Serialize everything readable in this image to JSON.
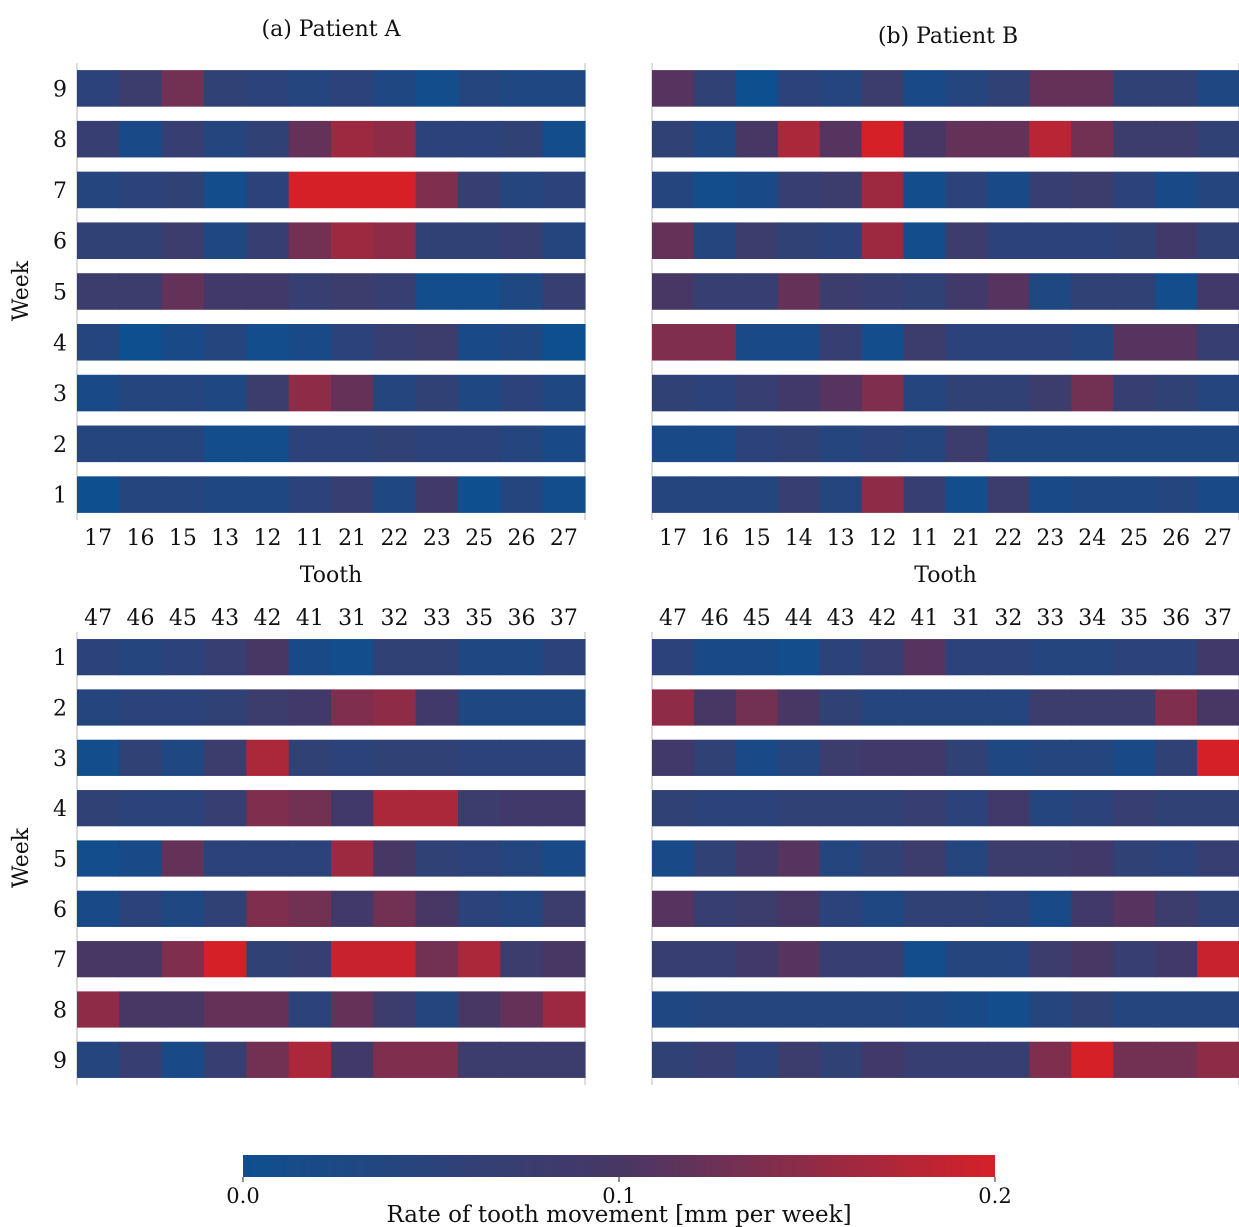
{
  "colors": {
    "scale_low": "#0e4f8f",
    "scale_mid": "#473765",
    "scale_high": "#d62028"
  },
  "colorbar": {
    "label": "Rate of tooth movement [mm per week]",
    "range": [
      0.0,
      0.2
    ],
    "ticks": [
      "0.0",
      "0.1",
      "0.2"
    ]
  },
  "chart_data": [
    {
      "type": "heatmap",
      "title": "(a) Patient A",
      "jaw": "upper",
      "xlabel": "Tooth",
      "ylabel": "Week",
      "x": [
        "17",
        "16",
        "15",
        "13",
        "12",
        "11",
        "21",
        "22",
        "23",
        "25",
        "26",
        "27"
      ],
      "y": [
        "9",
        "8",
        "7",
        "6",
        "5",
        "4",
        "3",
        "2",
        "1"
      ],
      "values": [
        [
          0.05,
          0.08,
          0.13,
          0.06,
          0.05,
          0.04,
          0.05,
          0.03,
          0.01,
          0.04,
          0.03,
          0.03
        ],
        [
          0.07,
          0.02,
          0.07,
          0.04,
          0.06,
          0.12,
          0.16,
          0.15,
          0.05,
          0.05,
          0.06,
          0.01
        ],
        [
          0.04,
          0.05,
          0.06,
          0.01,
          0.05,
          0.2,
          0.2,
          0.2,
          0.14,
          0.07,
          0.04,
          0.05
        ],
        [
          0.06,
          0.06,
          0.08,
          0.03,
          0.07,
          0.13,
          0.16,
          0.15,
          0.06,
          0.06,
          0.07,
          0.04
        ],
        [
          0.08,
          0.08,
          0.12,
          0.09,
          0.09,
          0.07,
          0.08,
          0.07,
          0.01,
          0.01,
          0.03,
          0.07
        ],
        [
          0.04,
          0.0,
          0.02,
          0.04,
          0.01,
          0.02,
          0.05,
          0.07,
          0.08,
          0.02,
          0.03,
          0.0
        ],
        [
          0.02,
          0.04,
          0.04,
          0.03,
          0.08,
          0.15,
          0.12,
          0.04,
          0.06,
          0.03,
          0.05,
          0.03
        ],
        [
          0.04,
          0.04,
          0.04,
          0.01,
          0.01,
          0.05,
          0.05,
          0.06,
          0.05,
          0.05,
          0.04,
          0.02
        ],
        [
          0.0,
          0.04,
          0.04,
          0.03,
          0.03,
          0.05,
          0.07,
          0.03,
          0.09,
          0.0,
          0.04,
          0.01
        ]
      ]
    },
    {
      "type": "heatmap",
      "title": "(b) Patient B",
      "jaw": "upper",
      "xlabel": "Tooth",
      "ylabel": "",
      "x": [
        "17",
        "16",
        "15",
        "14",
        "13",
        "12",
        "11",
        "21",
        "22",
        "23",
        "24",
        "25",
        "26",
        "27"
      ],
      "y": [
        "9",
        "8",
        "7",
        "6",
        "5",
        "4",
        "3",
        "2",
        "1"
      ],
      "values": [
        [
          0.11,
          0.06,
          0.0,
          0.05,
          0.04,
          0.08,
          0.02,
          0.04,
          0.06,
          0.12,
          0.12,
          0.06,
          0.06,
          0.03
        ],
        [
          0.06,
          0.03,
          0.1,
          0.17,
          0.11,
          0.2,
          0.1,
          0.12,
          0.12,
          0.18,
          0.13,
          0.08,
          0.08,
          0.06
        ],
        [
          0.04,
          0.01,
          0.02,
          0.07,
          0.08,
          0.16,
          0.01,
          0.05,
          0.02,
          0.07,
          0.08,
          0.05,
          0.02,
          0.04
        ],
        [
          0.12,
          0.04,
          0.08,
          0.06,
          0.05,
          0.16,
          0.01,
          0.08,
          0.05,
          0.05,
          0.05,
          0.06,
          0.09,
          0.06
        ],
        [
          0.1,
          0.07,
          0.07,
          0.12,
          0.08,
          0.07,
          0.06,
          0.09,
          0.11,
          0.03,
          0.06,
          0.06,
          0.01,
          0.09
        ],
        [
          0.14,
          0.14,
          0.02,
          0.02,
          0.07,
          0.01,
          0.08,
          0.05,
          0.05,
          0.05,
          0.04,
          0.11,
          0.11,
          0.07
        ],
        [
          0.06,
          0.05,
          0.07,
          0.09,
          0.11,
          0.14,
          0.04,
          0.06,
          0.06,
          0.08,
          0.13,
          0.07,
          0.06,
          0.04
        ],
        [
          0.02,
          0.02,
          0.05,
          0.06,
          0.04,
          0.05,
          0.04,
          0.08,
          0.03,
          0.03,
          0.03,
          0.03,
          0.03,
          0.03
        ],
        [
          0.04,
          0.04,
          0.04,
          0.07,
          0.04,
          0.15,
          0.07,
          0.01,
          0.08,
          0.02,
          0.03,
          0.03,
          0.04,
          0.02
        ]
      ]
    },
    {
      "type": "heatmap",
      "jaw": "lower",
      "xlabel": "",
      "ylabel": "Week",
      "x": [
        "47",
        "46",
        "45",
        "43",
        "42",
        "41",
        "31",
        "32",
        "33",
        "35",
        "36",
        "37"
      ],
      "y": [
        "1",
        "2",
        "3",
        "4",
        "5",
        "6",
        "7",
        "8",
        "9"
      ],
      "values": [
        [
          0.05,
          0.04,
          0.05,
          0.07,
          0.1,
          0.02,
          0.01,
          0.06,
          0.06,
          0.03,
          0.03,
          0.05
        ],
        [
          0.04,
          0.05,
          0.05,
          0.06,
          0.08,
          0.09,
          0.14,
          0.15,
          0.09,
          0.03,
          0.03,
          0.03
        ],
        [
          0.01,
          0.06,
          0.03,
          0.08,
          0.17,
          0.06,
          0.05,
          0.06,
          0.06,
          0.05,
          0.05,
          0.05
        ],
        [
          0.06,
          0.05,
          0.05,
          0.07,
          0.14,
          0.13,
          0.09,
          0.17,
          0.17,
          0.08,
          0.09,
          0.09
        ],
        [
          0.01,
          0.02,
          0.12,
          0.05,
          0.05,
          0.05,
          0.16,
          0.1,
          0.06,
          0.05,
          0.04,
          0.02
        ],
        [
          0.02,
          0.05,
          0.03,
          0.06,
          0.14,
          0.13,
          0.09,
          0.13,
          0.1,
          0.05,
          0.04,
          0.08
        ],
        [
          0.1,
          0.1,
          0.14,
          0.2,
          0.06,
          0.07,
          0.19,
          0.19,
          0.13,
          0.17,
          0.08,
          0.1
        ],
        [
          0.15,
          0.1,
          0.1,
          0.12,
          0.12,
          0.05,
          0.12,
          0.08,
          0.04,
          0.1,
          0.12,
          0.16
        ],
        [
          0.04,
          0.07,
          0.02,
          0.07,
          0.13,
          0.17,
          0.09,
          0.14,
          0.14,
          0.08,
          0.08,
          0.08
        ]
      ]
    },
    {
      "type": "heatmap",
      "jaw": "lower",
      "xlabel": "",
      "ylabel": "",
      "x": [
        "47",
        "46",
        "45",
        "44",
        "43",
        "42",
        "41",
        "31",
        "32",
        "33",
        "34",
        "35",
        "36",
        "37"
      ],
      "y": [
        "1",
        "2",
        "3",
        "4",
        "5",
        "6",
        "7",
        "8",
        "9"
      ],
      "values": [
        [
          0.05,
          0.02,
          0.02,
          0.01,
          0.05,
          0.07,
          0.11,
          0.05,
          0.05,
          0.04,
          0.04,
          0.05,
          0.05,
          0.09
        ],
        [
          0.15,
          0.1,
          0.13,
          0.1,
          0.06,
          0.04,
          0.04,
          0.04,
          0.04,
          0.08,
          0.08,
          0.08,
          0.14,
          0.1
        ],
        [
          0.09,
          0.06,
          0.02,
          0.04,
          0.08,
          0.09,
          0.09,
          0.06,
          0.03,
          0.04,
          0.04,
          0.02,
          0.06,
          0.2
        ],
        [
          0.06,
          0.05,
          0.05,
          0.06,
          0.06,
          0.06,
          0.07,
          0.05,
          0.09,
          0.04,
          0.05,
          0.07,
          0.06,
          0.06
        ],
        [
          0.02,
          0.06,
          0.09,
          0.11,
          0.04,
          0.06,
          0.08,
          0.04,
          0.08,
          0.08,
          0.09,
          0.06,
          0.05,
          0.07
        ],
        [
          0.11,
          0.07,
          0.08,
          0.1,
          0.05,
          0.03,
          0.06,
          0.06,
          0.05,
          0.02,
          0.09,
          0.11,
          0.08,
          0.06
        ],
        [
          0.07,
          0.07,
          0.09,
          0.11,
          0.07,
          0.07,
          0.01,
          0.04,
          0.04,
          0.08,
          0.1,
          0.07,
          0.09,
          0.19
        ],
        [
          0.03,
          0.04,
          0.04,
          0.04,
          0.04,
          0.04,
          0.03,
          0.02,
          0.01,
          0.04,
          0.06,
          0.04,
          0.04,
          0.04
        ],
        [
          0.06,
          0.07,
          0.05,
          0.08,
          0.06,
          0.09,
          0.07,
          0.07,
          0.07,
          0.14,
          0.2,
          0.13,
          0.13,
          0.15
        ]
      ]
    }
  ]
}
